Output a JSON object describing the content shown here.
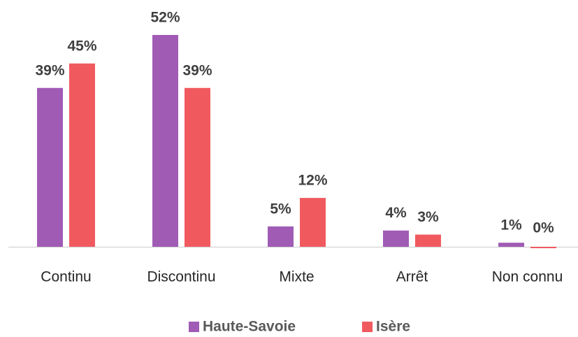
{
  "chart_data": {
    "type": "bar",
    "categories": [
      "Continu",
      "Discontinu",
      "Mixte",
      "Arrêt",
      "Non connu"
    ],
    "series": [
      {
        "name": "Haute-Savoie",
        "color": "#a05bb5",
        "values": [
          39,
          52,
          5,
          4,
          1
        ],
        "value_labels": [
          "39%",
          "52%",
          "5%",
          "4%",
          "1%"
        ]
      },
      {
        "name": "Isère",
        "color": "#f05a5f",
        "values": [
          45,
          39,
          12,
          3,
          0
        ],
        "value_labels": [
          "45%",
          "39%",
          "12%",
          "3%",
          "0%"
        ]
      }
    ],
    "ylim": [
      0,
      52
    ]
  }
}
